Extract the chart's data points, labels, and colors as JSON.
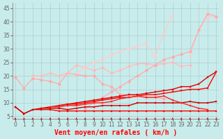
{
  "title": "",
  "xlabel": "Vent moyen/en rafales ( km/h )",
  "bg_color": "#c8ecec",
  "grid_color": "#b0cccc",
  "x": [
    0,
    1,
    2,
    3,
    4,
    5,
    6,
    7,
    8,
    9,
    10,
    11,
    12,
    13,
    14,
    15,
    16,
    17,
    18,
    19,
    20,
    21,
    22,
    23
  ],
  "series": [
    {
      "y": [
        19.5,
        15.5,
        19,
        18.5,
        18,
        17,
        21,
        20.5,
        20,
        20,
        17,
        16,
        13,
        13,
        12.5,
        12,
        12,
        11.5,
        null,
        null,
        null,
        null,
        null,
        null
      ],
      "color": "#ffaaaa",
      "lw": 0.9,
      "marker": "D",
      "ms": 2.5
    },
    {
      "y": [
        null,
        null,
        20,
        20,
        21,
        20,
        21,
        24,
        23,
        22,
        23,
        21,
        22,
        23.5,
        24.5,
        24.5,
        24,
        24.5,
        25,
        23.5,
        24,
        null,
        null,
        null
      ],
      "color": "#ffbbbb",
      "lw": 0.9,
      "marker": "D",
      "ms": 2.5
    },
    {
      "y": [
        null,
        null,
        null,
        null,
        null,
        null,
        null,
        21,
        23,
        25,
        26,
        28,
        29,
        30,
        31,
        32,
        27,
        36,
        42.5,
        null,
        null,
        null,
        null,
        null
      ],
      "color": "#ffcccc",
      "lw": 0.9,
      "marker": "D",
      "ms": 2.5
    },
    {
      "y": [
        null,
        null,
        null,
        null,
        null,
        null,
        null,
        null,
        null,
        null,
        null,
        null,
        null,
        null,
        null,
        null,
        null,
        null,
        null,
        null,
        27.5,
        37,
        42,
        42
      ],
      "color": "#ffcccc",
      "lw": 0.9,
      "marker": "D",
      "ms": 2.5
    },
    {
      "y": [
        null,
        null,
        null,
        null,
        null,
        null,
        null,
        null,
        8,
        10,
        12,
        14,
        16,
        18,
        20,
        22,
        24,
        26,
        27,
        28,
        29,
        37,
        43,
        42
      ],
      "color": "#ffaaaa",
      "lw": 0.9,
      "marker": "D",
      "ms": 2.5
    },
    {
      "y": [
        8.5,
        6,
        7.5,
        7.5,
        7.5,
        7,
        7,
        7,
        7,
        7,
        7,
        7,
        7,
        7,
        7,
        7,
        7,
        7,
        7,
        7,
        7,
        7,
        7,
        7
      ],
      "color": "#ff0000",
      "lw": 1.0,
      "marker": "s",
      "ms": 2
    },
    {
      "y": [
        8.5,
        6,
        7.5,
        8,
        8,
        8,
        7.5,
        8,
        8.5,
        8.5,
        9,
        9,
        9,
        9,
        10,
        10,
        10,
        10,
        10,
        10,
        10.5,
        10,
        10,
        10.5
      ],
      "color": "#cc0000",
      "lw": 1.0,
      "marker": "s",
      "ms": 2
    },
    {
      "y": [
        null,
        null,
        null,
        8,
        8.5,
        9,
        9.5,
        10,
        10.5,
        11,
        11.5,
        12,
        12.5,
        13,
        13,
        13.5,
        14,
        14.5,
        15,
        16,
        16,
        17,
        19.5,
        21.5
      ],
      "color": "#dd0000",
      "lw": 1.0,
      "marker": "s",
      "ms": 2
    },
    {
      "y": [
        null,
        null,
        null,
        null,
        null,
        9,
        9.5,
        9.5,
        10,
        10.5,
        11,
        11.5,
        12,
        12,
        12.5,
        13,
        13,
        13.5,
        14,
        14.5,
        15,
        15,
        15.5,
        21.5
      ],
      "color": "#ff0000",
      "lw": 1.0,
      "marker": "s",
      "ms": 2
    },
    {
      "y": [
        null,
        null,
        null,
        null,
        8.5,
        8.5,
        9,
        9,
        9.5,
        10,
        10,
        10.5,
        11.5,
        12,
        12.5,
        12,
        12,
        12.5,
        11,
        10,
        9,
        8,
        7.5,
        null
      ],
      "color": "#ff2222",
      "lw": 1.0,
      "marker": "s",
      "ms": 2
    }
  ],
  "xlim": [
    -0.3,
    23.3
  ],
  "ylim": [
    4,
    47
  ],
  "yticks": [
    5,
    10,
    15,
    20,
    25,
    30,
    35,
    40,
    45
  ],
  "xticks": [
    0,
    1,
    2,
    3,
    4,
    5,
    6,
    7,
    8,
    9,
    10,
    11,
    12,
    13,
    14,
    15,
    16,
    17,
    18,
    19,
    20,
    21,
    22,
    23
  ],
  "tick_fontsize": 5.5,
  "label_fontsize": 7,
  "arrow_color": "#cc0000"
}
